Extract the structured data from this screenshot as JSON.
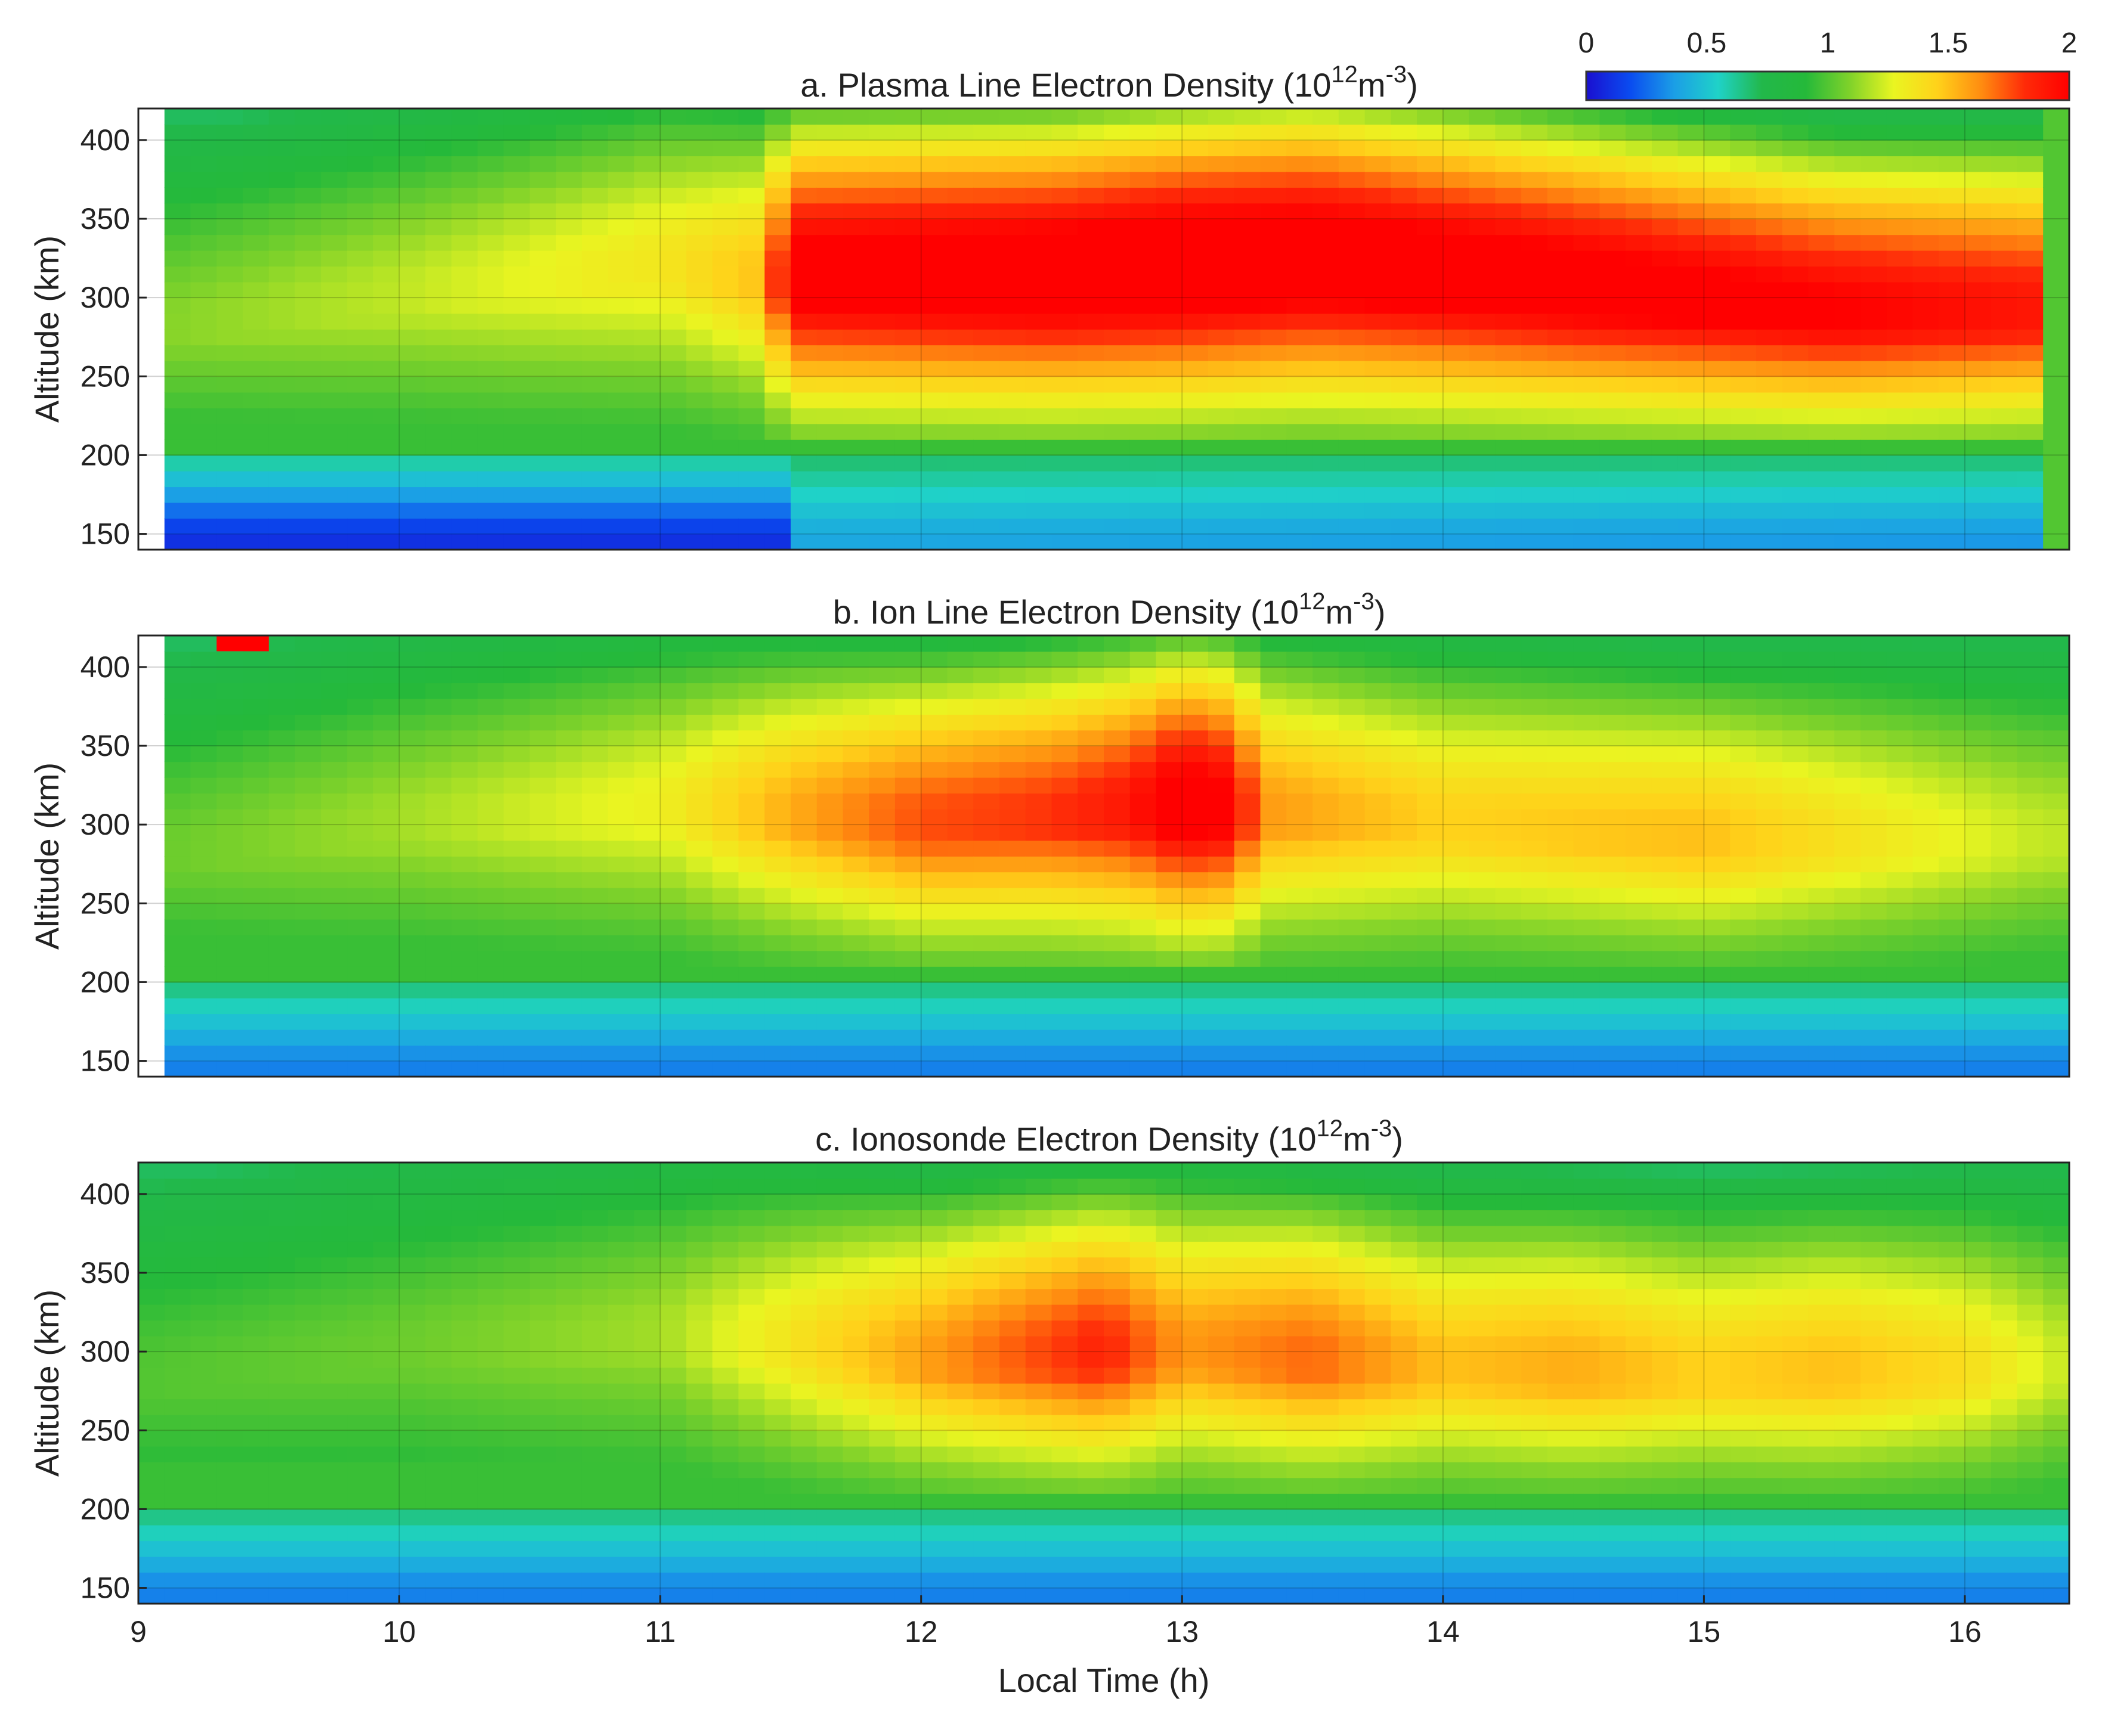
{
  "colorbar": {
    "ticks": [
      "0",
      "0.5",
      "1",
      "1.5",
      "2"
    ],
    "vmin": 0,
    "vmax": 2,
    "colormap": [
      "#1a0fd0",
      "#0a4cf0",
      "#1b9ee6",
      "#1fd2c8",
      "#22b84a",
      "#25b93a",
      "#7fd22a",
      "#e9f521",
      "#ffd21a",
      "#ff8c10",
      "#ff2a08",
      "#ff0000"
    ]
  },
  "chart_data": [
    {
      "type": "heatmap",
      "title": "a. Plasma Line Electron Density (10¹²m⁻³)",
      "title_parts": {
        "main": "a. Plasma Line Electron Density (10",
        "sup1": "12",
        "mid": "m",
        "sup2": "-3",
        "end": ")"
      },
      "xlabel": "",
      "ylabel": "Altitude (km)",
      "xlim": [
        9,
        16.4
      ],
      "ylim": [
        140,
        420
      ],
      "xticks": [
        "9",
        "10",
        "11",
        "12",
        "13",
        "14",
        "15",
        "16"
      ],
      "yticks": [
        "150",
        "200",
        "250",
        "300",
        "350",
        "400"
      ],
      "data_start_x": 9.1,
      "peak_altitude_km": [
        {
          "t": 9.1,
          "v": 290
        },
        {
          "t": 10.0,
          "v": 310
        },
        {
          "t": 11.0,
          "v": 330
        },
        {
          "t": 11.4,
          "v": 320
        },
        {
          "t": 12.5,
          "v": 320
        },
        {
          "t": 13.5,
          "v": 330
        },
        {
          "t": 14.5,
          "v": 315
        },
        {
          "t": 15.5,
          "v": 300
        },
        {
          "t": 16.3,
          "v": 300
        }
      ],
      "peak_density_1e12": [
        {
          "t": 9.1,
          "v": 1.1
        },
        {
          "t": 10.0,
          "v": 1.2
        },
        {
          "t": 11.0,
          "v": 1.35
        },
        {
          "t": 11.4,
          "v": 1.5
        },
        {
          "t": 11.5,
          "v": 2.1
        },
        {
          "t": 13.0,
          "v": 2.2
        },
        {
          "t": 14.5,
          "v": 2.1
        },
        {
          "t": 15.5,
          "v": 2.0
        },
        {
          "t": 16.3,
          "v": 1.9
        }
      ],
      "low_altitude_density_1e12": [
        {
          "t": 9.1,
          "v": 0.1
        },
        {
          "t": 11.45,
          "v": 0.1
        },
        {
          "t": 11.5,
          "v": 0.4
        },
        {
          "t": 16.3,
          "v": 0.35
        }
      ],
      "last_column_x": 16.3,
      "last_column_value": 1.0
    },
    {
      "type": "heatmap",
      "title": "b. Ion Line Electron Density (10¹²m⁻³)",
      "title_parts": {
        "main": "b. Ion Line Electron Density (10",
        "sup1": "12",
        "mid": "m",
        "sup2": "-3",
        "end": ")"
      },
      "xlabel": "",
      "ylabel": "Altitude (km)",
      "xlim": [
        9,
        16.4
      ],
      "ylim": [
        140,
        420
      ],
      "xticks": [
        "9",
        "10",
        "11",
        "12",
        "13",
        "14",
        "15",
        "16"
      ],
      "yticks": [
        "150",
        "200",
        "250",
        "300",
        "350",
        "400"
      ],
      "data_start_x": 9.1,
      "peak_altitude_km": [
        {
          "t": 9.1,
          "v": 290
        },
        {
          "t": 10.0,
          "v": 310
        },
        {
          "t": 11.0,
          "v": 320
        },
        {
          "t": 12.0,
          "v": 310
        },
        {
          "t": 13.0,
          "v": 320
        },
        {
          "t": 14.0,
          "v": 310
        },
        {
          "t": 15.0,
          "v": 300
        },
        {
          "t": 16.3,
          "v": 300
        }
      ],
      "peak_density_1e12": [
        {
          "t": 9.1,
          "v": 1.05
        },
        {
          "t": 10.0,
          "v": 1.15
        },
        {
          "t": 11.0,
          "v": 1.3
        },
        {
          "t": 11.5,
          "v": 1.55
        },
        {
          "t": 12.0,
          "v": 1.75
        },
        {
          "t": 12.5,
          "v": 1.8
        },
        {
          "t": 12.8,
          "v": 1.9
        },
        {
          "t": 13.0,
          "v": 2.1
        },
        {
          "t": 13.2,
          "v": 2.0
        },
        {
          "t": 13.3,
          "v": 1.6
        },
        {
          "t": 14.0,
          "v": 1.45
        },
        {
          "t": 15.0,
          "v": 1.5
        },
        {
          "t": 16.3,
          "v": 1.2
        }
      ],
      "low_altitude_density_1e12": [
        {
          "t": 9.1,
          "v": 0.3
        },
        {
          "t": 16.3,
          "v": 0.3
        }
      ],
      "outliers": [
        {
          "x0": 9.3,
          "x1": 9.5,
          "y0": 410,
          "y1": 420,
          "value": 2.0
        }
      ]
    },
    {
      "type": "heatmap",
      "title": "c. Ionosonde Electron Density (10¹²m⁻³)",
      "title_parts": {
        "main": "c. Ionosonde Electron Density (10",
        "sup1": "12",
        "mid": "m",
        "sup2": "-3",
        "end": ")"
      },
      "xlabel": "Local Time (h)",
      "ylabel": "Altitude (km)",
      "xlim": [
        9,
        16.4
      ],
      "ylim": [
        140,
        420
      ],
      "xticks": [
        "9",
        "10",
        "11",
        "12",
        "13",
        "14",
        "15",
        "16"
      ],
      "yticks": [
        "150",
        "200",
        "250",
        "300",
        "350",
        "400"
      ],
      "data_start_x": 9.0,
      "peak_altitude_km": [
        {
          "t": 9.0,
          "v": 290
        },
        {
          "t": 10.0,
          "v": 310
        },
        {
          "t": 11.0,
          "v": 320
        },
        {
          "t": 12.0,
          "v": 305
        },
        {
          "t": 13.0,
          "v": 310
        },
        {
          "t": 14.0,
          "v": 300
        },
        {
          "t": 15.0,
          "v": 295
        },
        {
          "t": 16.4,
          "v": 300
        }
      ],
      "peak_density_1e12": [
        {
          "t": 9.0,
          "v": 1.0
        },
        {
          "t": 10.0,
          "v": 1.05
        },
        {
          "t": 11.0,
          "v": 1.15
        },
        {
          "t": 11.7,
          "v": 1.45
        },
        {
          "t": 12.3,
          "v": 1.7
        },
        {
          "t": 12.7,
          "v": 1.85
        },
        {
          "t": 13.0,
          "v": 1.6
        },
        {
          "t": 13.5,
          "v": 1.7
        },
        {
          "t": 14.0,
          "v": 1.5
        },
        {
          "t": 14.5,
          "v": 1.55
        },
        {
          "t": 15.0,
          "v": 1.45
        },
        {
          "t": 15.5,
          "v": 1.5
        },
        {
          "t": 16.0,
          "v": 1.4
        },
        {
          "t": 16.4,
          "v": 1.2
        }
      ],
      "low_altitude_density_1e12": [
        {
          "t": 9.0,
          "v": 0.3
        },
        {
          "t": 16.4,
          "v": 0.3
        }
      ]
    }
  ]
}
